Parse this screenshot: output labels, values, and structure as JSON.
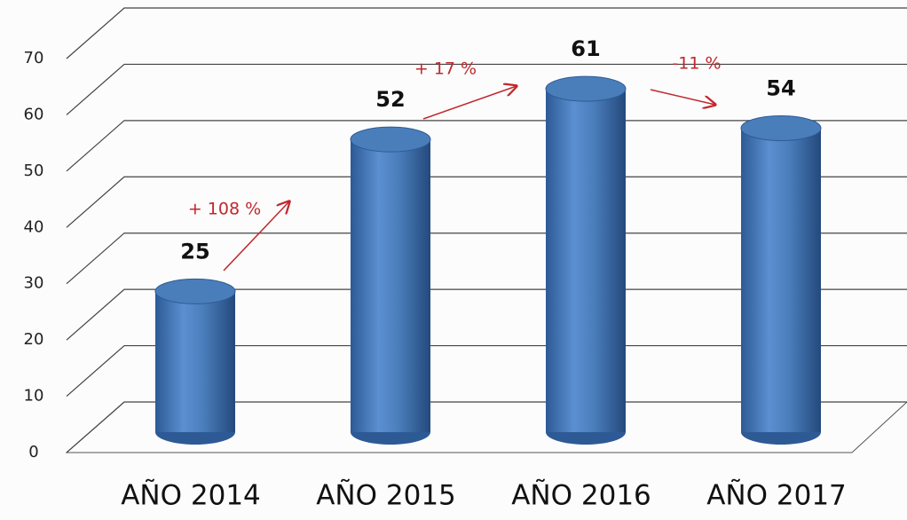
{
  "chart_data": {
    "type": "bar",
    "categories": [
      "AÑO 2014",
      "AÑO 2015",
      "AÑO 2016",
      "AÑO 2017"
    ],
    "values": [
      25,
      52,
      61,
      54
    ],
    "color": "#4a7ebb",
    "ylim": [
      0,
      70
    ],
    "yticks": [
      0,
      10,
      20,
      30,
      40,
      50,
      60,
      70
    ],
    "grid": true,
    "annotations": [
      "+ 108 %",
      "+ 17 %",
      "-11 %"
    ]
  }
}
